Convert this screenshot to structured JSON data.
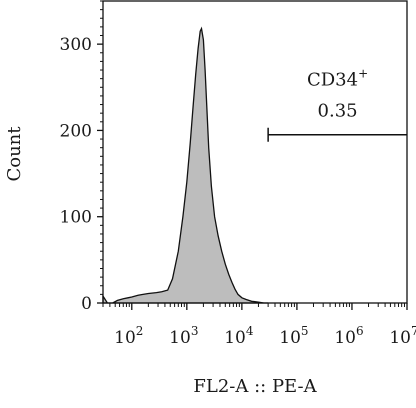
{
  "chart_data": {
    "type": "area",
    "xlabel": "FL2-A :: PE-A",
    "ylabel": "Count",
    "x_scale": "log",
    "xlim": [
      30,
      10000000
    ],
    "ylim": [
      0,
      350
    ],
    "x_ticks": [
      {
        "value": 100,
        "base": "10",
        "exp": "2"
      },
      {
        "value": 1000,
        "base": "10",
        "exp": "3"
      },
      {
        "value": 10000,
        "base": "10",
        "exp": "4"
      },
      {
        "value": 100000,
        "base": "10",
        "exp": "5"
      },
      {
        "value": 1000000,
        "base": "10",
        "exp": "6"
      },
      {
        "value": 10000000,
        "base": "10",
        "exp": "7"
      }
    ],
    "y_ticks": [
      0,
      100,
      200,
      300
    ],
    "fill_color": "#bdbdbd",
    "series": [
      {
        "x": [
          30,
          36,
          45,
          55,
          70,
          85,
          100,
          130,
          160,
          200,
          280,
          350,
          450,
          550,
          700,
          850,
          1000,
          1150,
          1300,
          1450,
          1600,
          1750,
          1850,
          2000,
          2150,
          2300,
          2500,
          2800,
          3200,
          3700,
          4300,
          5000,
          5800,
          6600,
          7500,
          8500,
          10000,
          12000,
          15000,
          20000,
          25000,
          30000
        ],
        "y": [
          8,
          0,
          0,
          3,
          5,
          6,
          7,
          9,
          10,
          11,
          12,
          13,
          15,
          28,
          60,
          100,
          140,
          185,
          228,
          265,
          295,
          315,
          318,
          305,
          270,
          230,
          180,
          135,
          100,
          78,
          60,
          45,
          33,
          24,
          16,
          10,
          6,
          4,
          2,
          1,
          0,
          0
        ]
      }
    ],
    "gate": {
      "label": "CD34",
      "superscript": "+",
      "value": "0.35",
      "x_start": 30000,
      "x_end": 10000000,
      "y_level": 195
    }
  }
}
